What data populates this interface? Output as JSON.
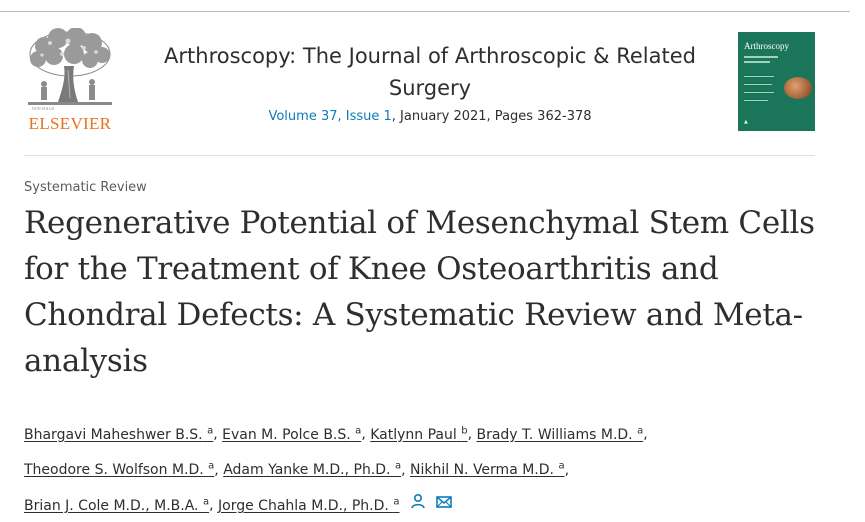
{
  "header": {
    "publisher": "ELSEVIER",
    "journal_title": "Arthroscopy: The Journal of Arthroscopic & Related Surgery",
    "volume_issue": "Volume 37, Issue 1",
    "date_pages": ", January 2021, Pages 362-378",
    "cover_title": "Arthroscopy"
  },
  "article": {
    "type": "Systematic Review",
    "title": "Regenerative Potential of Mesenchymal Stem Cells for the Treatment of Knee Osteoarthritis and Chondral Defects: A Systematic Review and Meta-analysis"
  },
  "authors": [
    {
      "name": "Bhargavi Maheshwer B.S.",
      "aff": "a"
    },
    {
      "name": "Evan M. Polce B.S.",
      "aff": "a"
    },
    {
      "name": "Katlynn Paul",
      "aff": "b"
    },
    {
      "name": "Brady T. Williams M.D.",
      "aff": "a"
    },
    {
      "name": "Theodore S. Wolfson M.D.",
      "aff": "a"
    },
    {
      "name": "Adam Yanke M.D., Ph.D.",
      "aff": "a"
    },
    {
      "name": "Nikhil N. Verma M.D.",
      "aff": "a"
    },
    {
      "name": "Brian J. Cole M.D., M.B.A.",
      "aff": "a"
    },
    {
      "name": "Jorge Chahla M.D., Ph.D.",
      "aff": "a"
    }
  ],
  "icons": {
    "person": "person-icon",
    "email": "email-icon"
  },
  "colors": {
    "link": "#0c7dbb",
    "elsevier_orange": "#e9711c",
    "cover_green": "#1b7558"
  }
}
